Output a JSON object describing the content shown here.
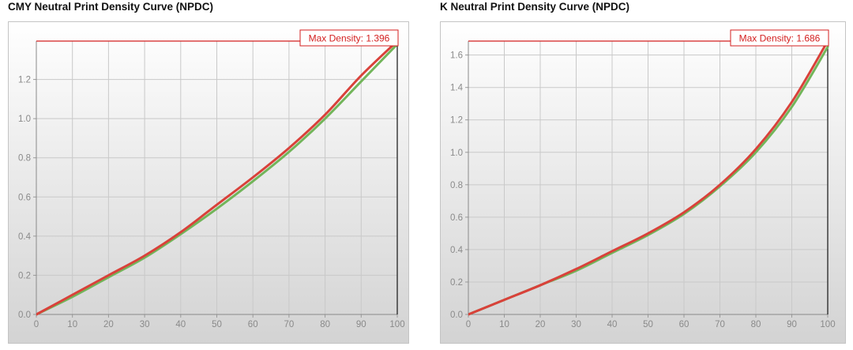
{
  "chart_data": [
    {
      "type": "line",
      "title": "CMY Neutral Print Density Curve (NPDC)",
      "xlim": [
        0,
        100
      ],
      "ylim": [
        0,
        1.396
      ],
      "x_ticks": [
        "0",
        "10",
        "20",
        "30",
        "40",
        "50",
        "60",
        "70",
        "80",
        "90",
        "100"
      ],
      "y_ticks": [
        "0.0",
        "0.2",
        "0.4",
        "0.6",
        "0.8",
        "1.0",
        "1.2"
      ],
      "max_density_label": "Max Density: 1.396",
      "max_density": 1.396,
      "grid": true,
      "series": [
        {
          "color": "#72b55a",
          "x": [
            0,
            10,
            20,
            30,
            40,
            50,
            60,
            70,
            80,
            90,
            100
          ],
          "y": [
            0.0,
            0.09,
            0.19,
            0.29,
            0.41,
            0.54,
            0.68,
            0.83,
            1.0,
            1.19,
            1.38
          ]
        },
        {
          "color": "#d9413a",
          "x": [
            0,
            10,
            20,
            30,
            40,
            50,
            60,
            70,
            80,
            90,
            100
          ],
          "y": [
            0.0,
            0.1,
            0.2,
            0.3,
            0.42,
            0.56,
            0.7,
            0.85,
            1.02,
            1.22,
            1.396
          ]
        }
      ]
    },
    {
      "type": "line",
      "title": "K Neutral Print Density Curve (NPDC)",
      "xlim": [
        0,
        100
      ],
      "ylim": [
        0,
        1.686
      ],
      "x_ticks": [
        "0",
        "10",
        "20",
        "30",
        "40",
        "50",
        "60",
        "70",
        "80",
        "90",
        "100"
      ],
      "y_ticks": [
        "0.0",
        "0.2",
        "0.4",
        "0.6",
        "0.8",
        "1.0",
        "1.2",
        "1.4",
        "1.6"
      ],
      "max_density_label": "Max Density: 1.686",
      "max_density": 1.686,
      "grid": true,
      "series": [
        {
          "color": "#72b55a",
          "x": [
            0,
            10,
            20,
            30,
            40,
            50,
            60,
            70,
            80,
            90,
            100
          ],
          "y": [
            0.0,
            0.09,
            0.18,
            0.27,
            0.38,
            0.49,
            0.62,
            0.79,
            1.0,
            1.28,
            1.65
          ]
        },
        {
          "color": "#d9413a",
          "x": [
            0,
            10,
            20,
            30,
            40,
            50,
            60,
            70,
            80,
            90,
            100
          ],
          "y": [
            0.0,
            0.09,
            0.18,
            0.28,
            0.39,
            0.5,
            0.63,
            0.8,
            1.02,
            1.31,
            1.686
          ]
        }
      ]
    }
  ]
}
